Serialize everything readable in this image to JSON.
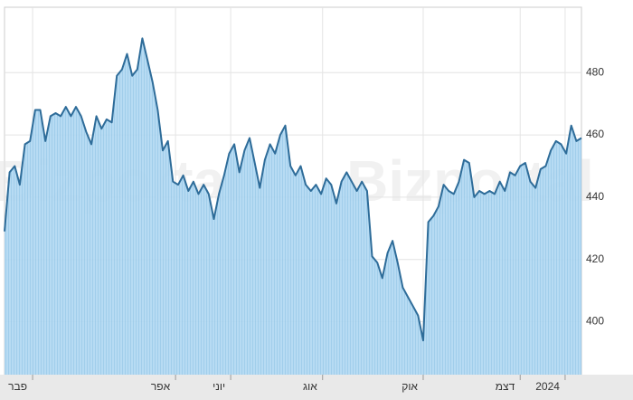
{
  "chart_data": {
    "type": "area",
    "watermark": "Bizportal",
    "x": [
      0,
      1,
      2,
      3,
      4,
      5,
      6,
      7,
      8,
      9,
      10,
      11,
      12,
      13,
      14,
      15,
      16,
      17,
      18,
      19,
      20,
      21,
      22,
      23,
      24,
      25,
      26,
      27,
      28,
      29,
      30,
      31,
      32,
      33,
      34,
      35,
      36,
      37,
      38,
      39,
      40,
      41,
      42,
      43,
      44,
      45,
      46,
      47,
      48,
      49,
      50,
      51,
      52,
      53,
      54,
      55,
      56,
      57,
      58,
      59,
      60,
      61,
      62,
      63,
      64,
      65,
      66,
      67,
      68,
      69,
      70,
      71,
      72,
      73,
      74,
      75,
      76,
      77,
      78,
      79,
      80,
      81,
      82,
      83,
      84,
      85,
      86,
      87,
      88,
      89,
      90,
      91,
      92,
      93,
      94,
      95,
      96,
      97,
      98,
      99,
      100,
      101,
      102,
      103,
      104,
      105,
      106,
      107,
      108,
      109,
      110,
      111,
      112,
      113
    ],
    "series": [
      {
        "color": "#2e6c99",
        "fill": "#acd6f0",
        "values": [
          429,
          448,
          450,
          444,
          457,
          458,
          468,
          468,
          458,
          466,
          467,
          466,
          469,
          466,
          469,
          466,
          461,
          457,
          466,
          462,
          465,
          464,
          479,
          481,
          486,
          479,
          481,
          491,
          484,
          477,
          468,
          455,
          458,
          445,
          444,
          447,
          442,
          445,
          441,
          444,
          441,
          433,
          441,
          447,
          454,
          457,
          448,
          455,
          459,
          451,
          443,
          452,
          457,
          454,
          460,
          463,
          450,
          447,
          450,
          444,
          442,
          444,
          441,
          446,
          444,
          438,
          445,
          448,
          445,
          442,
          445,
          442,
          421,
          419,
          414,
          422,
          426,
          419,
          411,
          408,
          405,
          402,
          394,
          432,
          434,
          437,
          444,
          442,
          441,
          445,
          452,
          451,
          440,
          442,
          441,
          442,
          441,
          445,
          442,
          448,
          447,
          450,
          451,
          445,
          443,
          449,
          450,
          455,
          458,
          457,
          454,
          463,
          458,
          459
        ]
      }
    ],
    "xlim": [
      0,
      113
    ],
    "xticks": [
      {
        "value": 5.5,
        "label": "פבר"
      },
      {
        "value": 33.5,
        "label": "אפר"
      },
      {
        "value": 44.3,
        "label": "יוני"
      },
      {
        "value": 62.3,
        "label": "אוג"
      },
      {
        "value": 82,
        "label": "אוק"
      },
      {
        "value": 101,
        "label": "דצמ"
      },
      {
        "value": 109.8,
        "label": "2024"
      }
    ],
    "ylim": [
      383,
      501
    ],
    "yticks": [
      400,
      420,
      440,
      460,
      480
    ],
    "grid": true
  }
}
